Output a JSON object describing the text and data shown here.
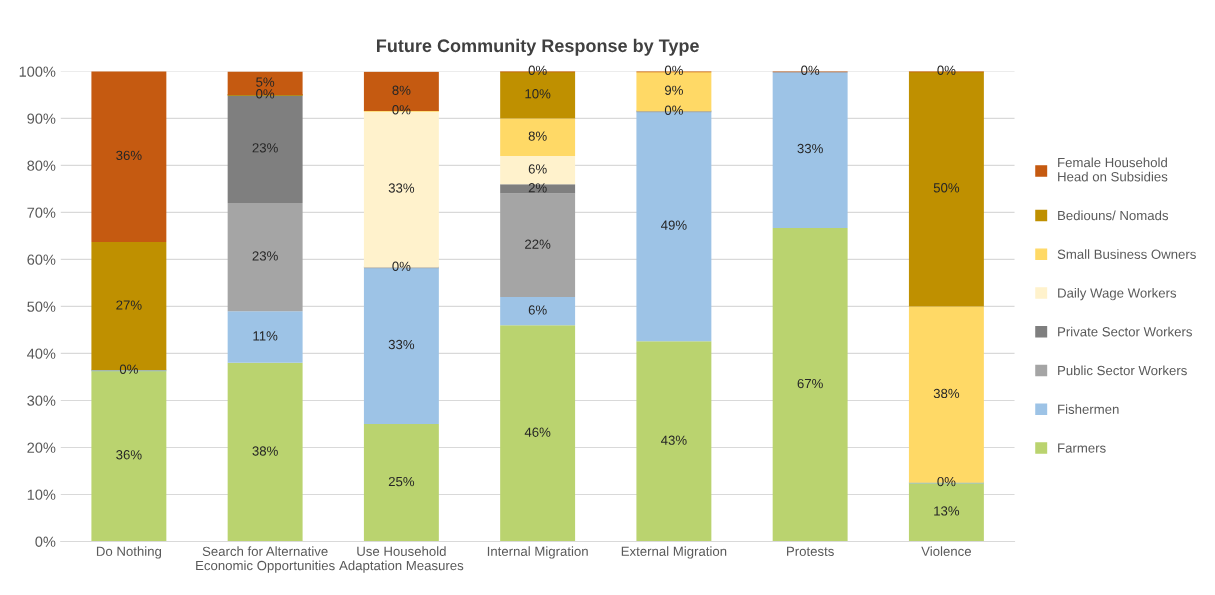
{
  "chart_data": {
    "type": "bar",
    "stacked": true,
    "title": "Future Community Response by Type",
    "categories": [
      "Do Nothing",
      "Search for Alternative\nEconomic Opportunities",
      "Use Household\nAdaptation Measures",
      "Internal Migration",
      "External Migration",
      "Protests",
      "Violence"
    ],
    "series": [
      {
        "name": "Farmers",
        "color": "#bad36f",
        "values": [
          36.4,
          38,
          25,
          46,
          42.6,
          66.7,
          12.5
        ],
        "value_labels": [
          "36%",
          "38%",
          "25%",
          "46%",
          "43%",
          "67%",
          "13%"
        ]
      },
      {
        "name": "Fishermen",
        "color": "#9dc3e6",
        "values": [
          0,
          11,
          33.3,
          6,
          48.9,
          33.3,
          0
        ],
        "value_labels": [
          "0%",
          "11%",
          "33%",
          "6%",
          "49%",
          "33%",
          "0%"
        ]
      },
      {
        "name": "Public Sector Workers",
        "color": "#a5a5a5",
        "values": [
          null,
          23,
          0,
          22,
          0,
          null,
          null
        ],
        "value_labels": [
          null,
          "23%",
          "0%",
          "22%",
          "0%",
          null,
          null
        ]
      },
      {
        "name": "Private Sector Workers",
        "color": "#7f7f7f",
        "values": [
          null,
          23,
          null,
          2,
          null,
          null,
          null
        ],
        "value_labels": [
          null,
          "23%",
          null,
          "2%",
          null,
          null,
          null
        ]
      },
      {
        "name": "Daily Wage Workers",
        "color": "#fff2cc",
        "values": [
          null,
          null,
          33.3,
          6,
          null,
          null,
          null
        ],
        "value_labels": [
          null,
          null,
          "33%",
          "6%",
          null,
          null,
          null
        ]
      },
      {
        "name": "Small Business Owners",
        "color": "#ffd966",
        "values": [
          null,
          null,
          0,
          8,
          8.5,
          null,
          37.5
        ],
        "value_labels": [
          null,
          null,
          "0%",
          "8%",
          "9%",
          null,
          "38%"
        ]
      },
      {
        "name": "Bediouns/ Nomads",
        "color": "#bf9000",
        "values": [
          27.3,
          0,
          null,
          10,
          null,
          null,
          50
        ],
        "value_labels": [
          "27%",
          "0%",
          null,
          "10%",
          null,
          null,
          "50%"
        ]
      },
      {
        "name": "Female Household\nHead on Subsidies",
        "color": "#c55a11",
        "values": [
          36.4,
          5,
          8.3,
          0,
          0,
          0,
          0
        ],
        "value_labels": [
          "36%",
          "5%",
          "8%",
          "0%",
          "0%",
          "0%",
          "0%"
        ]
      }
    ],
    "ylim": [
      0,
      100
    ],
    "yticks": [
      {
        "value": 0,
        "label": "0%"
      },
      {
        "value": 10,
        "label": "10%"
      },
      {
        "value": 20,
        "label": "20%"
      },
      {
        "value": 30,
        "label": "30%"
      },
      {
        "value": 40,
        "label": "40%"
      },
      {
        "value": 50,
        "label": "50%"
      },
      {
        "value": 60,
        "label": "60%"
      },
      {
        "value": 70,
        "label": "70%"
      },
      {
        "value": 80,
        "label": "80%"
      },
      {
        "value": 90,
        "label": "90%"
      },
      {
        "value": 100,
        "label": "100%"
      }
    ],
    "grid": "y",
    "legend": "right"
  }
}
